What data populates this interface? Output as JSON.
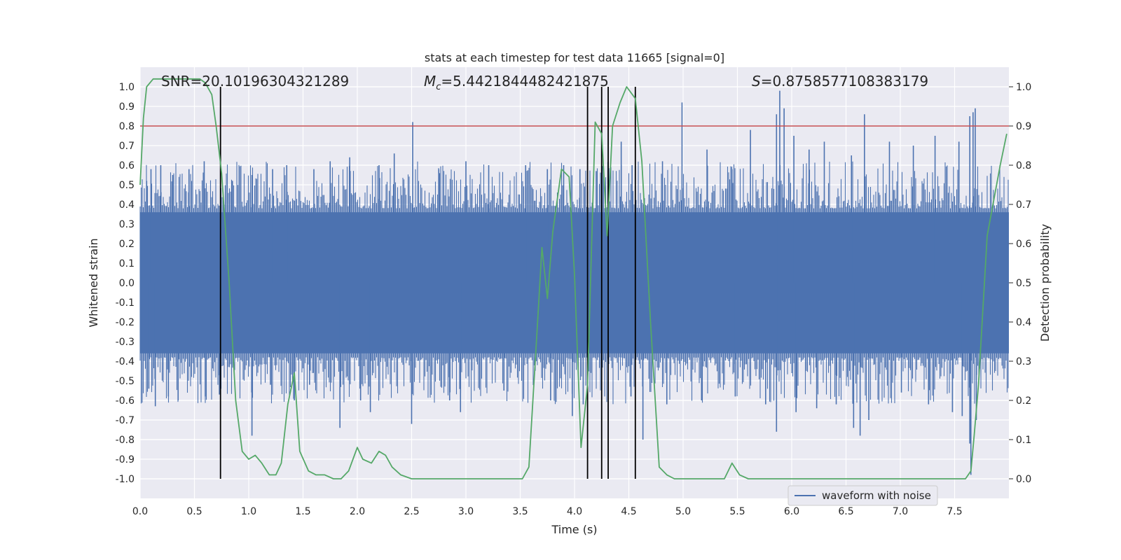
{
  "chart_data": {
    "type": "line",
    "title": "stats at each timestep for test data 11665 [signal=0]",
    "xlabel": "Time (s)",
    "ylabel": "Whitened strain",
    "y2label": "Detection probability",
    "xlim": [
      0.0,
      8.0
    ],
    "ylim": [
      -1.1,
      1.1
    ],
    "y2lim": [
      -0.05,
      1.05
    ],
    "xticks": [
      "0.0",
      "0.5",
      "1.0",
      "1.5",
      "2.0",
      "2.5",
      "3.0",
      "3.5",
      "4.0",
      "4.5",
      "5.0",
      "5.5",
      "6.0",
      "6.5",
      "7.0",
      "7.5"
    ],
    "yticks": [
      "1.0",
      "0.9",
      "0.8",
      "0.7",
      "0.6",
      "0.5",
      "0.4",
      "0.3",
      "0.2",
      "0.1",
      "0.0",
      "-0.1",
      "-0.2",
      "-0.3",
      "-0.4",
      "-0.5",
      "-0.6",
      "-0.7",
      "-0.8",
      "-0.9",
      "-1.0"
    ],
    "y2ticks": [
      "1.0",
      "0.9",
      "0.8",
      "0.7",
      "0.6",
      "0.5",
      "0.4",
      "0.3",
      "0.2",
      "0.1",
      "0.0"
    ],
    "grid": true,
    "legend": {
      "position": "lower-right",
      "entries": [
        "waveform with noise"
      ]
    },
    "annotations": {
      "snr": "SNR=20.10196304321289",
      "mc_symbol": "M",
      "mc_sub": "c",
      "mc_value": "=5.4421844482421875",
      "s_symbol": "S",
      "s_value": "=0.8758577108383179"
    },
    "threshold": {
      "y2": 0.9,
      "color": "#c44e52"
    },
    "vlines_x": [
      0.74,
      4.12,
      4.25,
      4.31,
      4.56
    ],
    "waveform": {
      "name": "waveform with noise",
      "color": "#4c72b0",
      "x_range": [
        0.0,
        8.0
      ],
      "body_amplitude": 0.36,
      "spikes": [
        {
          "x": 0.06,
          "y": 0.52
        },
        {
          "x": 0.1,
          "y": 0.58
        },
        {
          "x": 0.19,
          "y": 0.6
        },
        {
          "x": 0.3,
          "y": 0.55
        },
        {
          "x": 0.45,
          "y": 0.58
        },
        {
          "x": 0.59,
          "y": 0.62
        },
        {
          "x": 0.85,
          "y": 0.52
        },
        {
          "x": 1.03,
          "y": 0.55
        },
        {
          "x": 1.22,
          "y": 0.58
        },
        {
          "x": 1.35,
          "y": 0.6
        },
        {
          "x": 1.6,
          "y": 0.58
        },
        {
          "x": 1.75,
          "y": 0.62
        },
        {
          "x": 1.93,
          "y": 0.64
        },
        {
          "x": 2.2,
          "y": 0.6
        },
        {
          "x": 2.34,
          "y": 0.66
        },
        {
          "x": 2.51,
          "y": 0.82
        },
        {
          "x": 2.75,
          "y": 0.58
        },
        {
          "x": 3.0,
          "y": 0.62
        },
        {
          "x": 3.21,
          "y": 0.6
        },
        {
          "x": 3.55,
          "y": 0.6
        },
        {
          "x": 3.75,
          "y": 0.58
        },
        {
          "x": 3.9,
          "y": 0.6
        },
        {
          "x": 4.05,
          "y": 0.58
        },
        {
          "x": 4.2,
          "y": 0.57
        },
        {
          "x": 4.43,
          "y": 0.72
        },
        {
          "x": 4.53,
          "y": 0.6
        },
        {
          "x": 4.81,
          "y": 0.62
        },
        {
          "x": 4.99,
          "y": 0.92
        },
        {
          "x": 5.22,
          "y": 0.68
        },
        {
          "x": 5.45,
          "y": 0.58
        },
        {
          "x": 5.62,
          "y": 0.78
        },
        {
          "x": 5.86,
          "y": 0.86
        },
        {
          "x": 5.89,
          "y": 0.98
        },
        {
          "x": 5.93,
          "y": 0.89
        },
        {
          "x": 6.02,
          "y": 0.75
        },
        {
          "x": 6.16,
          "y": 0.68
        },
        {
          "x": 6.3,
          "y": 0.72
        },
        {
          "x": 6.55,
          "y": 0.65
        },
        {
          "x": 6.67,
          "y": 0.86
        },
        {
          "x": 6.9,
          "y": 0.72
        },
        {
          "x": 7.12,
          "y": 0.7
        },
        {
          "x": 7.32,
          "y": 0.75
        },
        {
          "x": 7.54,
          "y": 0.72
        },
        {
          "x": 7.64,
          "y": 0.85
        },
        {
          "x": 7.67,
          "y": 0.87
        },
        {
          "x": 7.69,
          "y": 0.89
        },
        {
          "x": 0.08,
          "y": -0.54
        },
        {
          "x": 0.14,
          "y": -0.63
        },
        {
          "x": 0.26,
          "y": -0.58
        },
        {
          "x": 0.35,
          "y": -0.6
        },
        {
          "x": 0.6,
          "y": -0.58
        },
        {
          "x": 0.73,
          "y": -0.57
        },
        {
          "x": 1.03,
          "y": -0.78
        },
        {
          "x": 1.2,
          "y": -0.52
        },
        {
          "x": 1.42,
          "y": -0.6
        },
        {
          "x": 1.56,
          "y": -0.52
        },
        {
          "x": 1.84,
          "y": -0.74
        },
        {
          "x": 2.03,
          "y": -0.6
        },
        {
          "x": 2.12,
          "y": -0.66
        },
        {
          "x": 2.5,
          "y": -0.72
        },
        {
          "x": 2.85,
          "y": -0.6
        },
        {
          "x": 2.95,
          "y": -0.66
        },
        {
          "x": 3.35,
          "y": -0.55
        },
        {
          "x": 3.78,
          "y": -0.6
        },
        {
          "x": 3.98,
          "y": -0.68
        },
        {
          "x": 4.08,
          "y": -0.62
        },
        {
          "x": 4.52,
          "y": -0.58
        },
        {
          "x": 4.63,
          "y": -0.8
        },
        {
          "x": 4.85,
          "y": -0.62
        },
        {
          "x": 5.17,
          "y": -0.6
        },
        {
          "x": 5.48,
          "y": -0.58
        },
        {
          "x": 5.76,
          "y": -0.62
        },
        {
          "x": 5.86,
          "y": -0.76
        },
        {
          "x": 6.04,
          "y": -0.66
        },
        {
          "x": 6.23,
          "y": -0.64
        },
        {
          "x": 6.41,
          "y": -0.62
        },
        {
          "x": 6.57,
          "y": -0.74
        },
        {
          "x": 6.63,
          "y": -0.78
        },
        {
          "x": 6.71,
          "y": -0.7
        },
        {
          "x": 7.01,
          "y": -0.56
        },
        {
          "x": 7.26,
          "y": -0.62
        },
        {
          "x": 7.48,
          "y": -0.66
        },
        {
          "x": 7.57,
          "y": -0.68
        },
        {
          "x": 7.64,
          "y": -0.82
        },
        {
          "x": 7.65,
          "y": -0.98
        },
        {
          "x": 7.7,
          "y": -0.7
        }
      ]
    },
    "probability": {
      "color": "#55a868",
      "x": [
        0.0,
        0.03,
        0.06,
        0.12,
        0.2,
        0.3,
        0.4,
        0.5,
        0.55,
        0.6,
        0.66,
        0.7,
        0.75,
        0.82,
        0.88,
        0.94,
        1.0,
        1.06,
        1.12,
        1.19,
        1.25,
        1.3,
        1.36,
        1.42,
        1.47,
        1.55,
        1.62,
        1.7,
        1.78,
        1.85,
        1.92,
        2.0,
        2.05,
        2.13,
        2.2,
        2.26,
        2.32,
        2.4,
        2.5,
        2.6,
        2.8,
        3.0,
        3.2,
        3.4,
        3.52,
        3.58,
        3.66,
        3.7,
        3.75,
        3.8,
        3.88,
        3.95,
        4.0,
        4.06,
        4.12,
        4.19,
        4.25,
        4.3,
        4.35,
        4.42,
        4.48,
        4.56,
        4.62,
        4.7,
        4.78,
        4.85,
        4.92,
        5.0,
        5.1,
        5.3,
        5.38,
        5.45,
        5.52,
        5.6,
        5.66,
        5.75,
        6.0,
        6.5,
        6.7,
        7.0,
        7.3,
        7.6,
        7.65,
        7.68,
        7.72,
        7.8,
        7.86,
        7.92,
        7.98
      ],
      "y": [
        0.75,
        0.92,
        1.0,
        1.02,
        1.02,
        1.02,
        1.02,
        1.02,
        1.02,
        1.01,
        0.98,
        0.9,
        0.78,
        0.5,
        0.2,
        0.07,
        0.05,
        0.06,
        0.04,
        0.01,
        0.01,
        0.04,
        0.19,
        0.27,
        0.07,
        0.02,
        0.01,
        0.01,
        0.0,
        0.0,
        0.02,
        0.08,
        0.05,
        0.04,
        0.07,
        0.06,
        0.03,
        0.01,
        0.0,
        0.0,
        0.0,
        0.0,
        0.0,
        0.0,
        0.0,
        0.03,
        0.4,
        0.59,
        0.46,
        0.63,
        0.79,
        0.77,
        0.52,
        0.08,
        0.24,
        0.91,
        0.88,
        0.62,
        0.9,
        0.96,
        1.0,
        0.97,
        0.81,
        0.4,
        0.03,
        0.01,
        0.0,
        0.0,
        0.0,
        0.0,
        0.0,
        0.04,
        0.01,
        0.0,
        0.0,
        0.0,
        0.0,
        0.0,
        0.0,
        0.0,
        0.0,
        0.0,
        0.02,
        0.11,
        0.24,
        0.62,
        0.71,
        0.8,
        0.88
      ]
    }
  }
}
